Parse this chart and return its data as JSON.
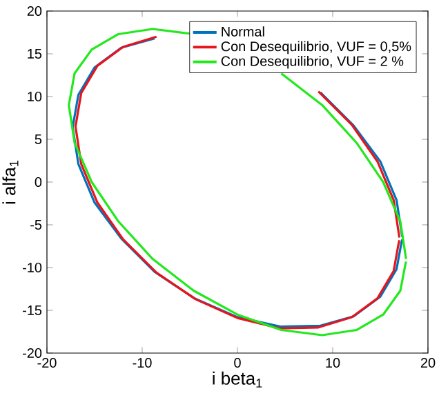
{
  "chart_data": {
    "type": "line",
    "xlabel": "i beta$_{1}$",
    "ylabel": "i alfa$_{1}$",
    "xlim": [
      -20,
      20
    ],
    "ylim": [
      -20,
      20
    ],
    "xticks": [
      -20,
      -10,
      0,
      10,
      20
    ],
    "yticks": [
      -20,
      -15,
      -10,
      -5,
      0,
      5,
      10,
      15,
      20
    ],
    "grid": false,
    "legend": "top right",
    "marker": "none",
    "line_style": "solid",
    "series": [
      {
        "name": "Normal",
        "color": "#0072bd",
        "x": [
          17.3,
          16.7,
          15.0,
          12.2,
          8.7,
          4.5,
          0,
          -4.5,
          -8.7,
          -12.2,
          -15.0,
          -16.7,
          -17.3,
          -16.7,
          -15.0,
          -12.2,
          -8.7,
          -4.5,
          0,
          4.5,
          8.7,
          12.2,
          15.0,
          16.7,
          17.2,
          17.3
        ],
        "values": [
          -6.4,
          -2.1,
          2.4,
          6.6,
          10.5,
          null,
          null,
          null,
          16.8,
          15.7,
          13.4,
          10.2,
          6.4,
          2.1,
          -2.4,
          -6.6,
          -10.5,
          -13.6,
          -15.8,
          -16.9,
          -16.8,
          -15.7,
          -13.4,
          -10.2,
          -7.2,
          -6.7
        ]
      },
      {
        "name": "Con Desequilibrio, VUF = 0,5%",
        "color": "#e8141c",
        "x": [
          17.0,
          16.4,
          14.7,
          12.0,
          8.5,
          4.4,
          0,
          -4.4,
          -8.5,
          -12.0,
          -14.7,
          -16.4,
          -17.0,
          -16.4,
          -14.7,
          -12.0,
          -8.5,
          -4.4,
          0,
          4.4,
          8.5,
          12.0,
          14.7,
          16.4,
          16.9,
          17.0
        ],
        "values": [
          -6.5,
          -2.1,
          2.4,
          6.7,
          10.6,
          null,
          null,
          null,
          17.0,
          15.8,
          13.6,
          10.4,
          6.5,
          2.1,
          -2.4,
          -6.7,
          -10.6,
          -13.7,
          -15.9,
          -17.1,
          -17.0,
          -15.8,
          -13.6,
          -10.4,
          -7.3,
          -6.8
        ]
      },
      {
        "name": "Con Desequilibrio, VUF = 2 %",
        "color": "#22e81c",
        "x": [
          17.7,
          17.1,
          15.3,
          12.5,
          8.9,
          4.6,
          0,
          -4.6,
          -8.9,
          -12.5,
          -15.3,
          -17.1,
          -17.7,
          -17.1,
          -15.3,
          -12.5,
          -8.9,
          -4.6,
          0,
          4.6,
          8.9,
          12.5,
          15.3,
          17.1,
          17.6,
          17.7
        ],
        "values": [
          -9.0,
          -4.6,
          0,
          4.6,
          9.0,
          12.7,
          null,
          17.3,
          17.9,
          17.3,
          15.5,
          12.7,
          9.0,
          4.6,
          0,
          -4.6,
          -9.0,
          -12.7,
          -15.5,
          -17.3,
          -17.9,
          -17.3,
          -15.5,
          -12.7,
          -9.8,
          -9.3
        ]
      }
    ]
  }
}
